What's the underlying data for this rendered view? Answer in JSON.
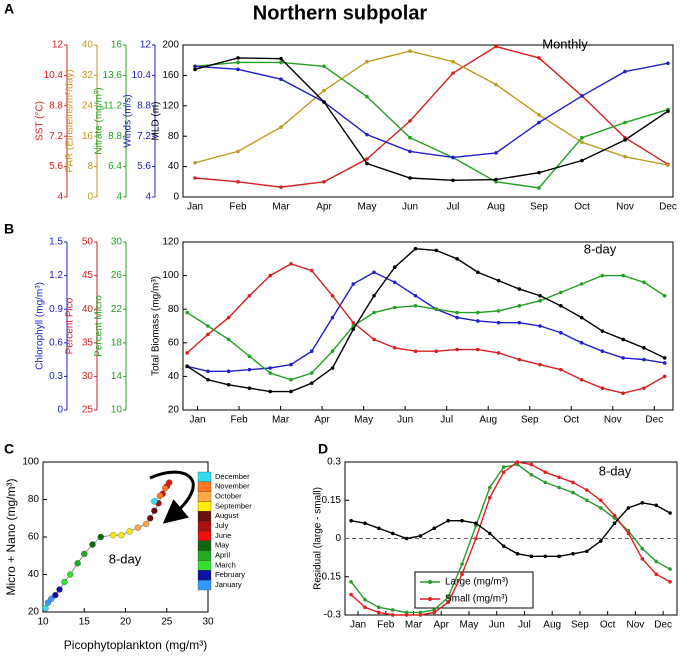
{
  "figure_title": "Northern subpolar",
  "chart_data": [
    {
      "type": "multiaxis_line",
      "panel": "A",
      "annotation": "Monthly",
      "categories": [
        "Jan",
        "Feb",
        "Mar",
        "Apr",
        "May",
        "Jun",
        "Jul",
        "Aug",
        "Sep",
        "Oct",
        "Nov",
        "Dec"
      ],
      "series": [
        {
          "name": "SST (°C)",
          "color": "#d62020",
          "ylim": [
            4,
            12
          ],
          "yticks": [
            4,
            5.6,
            7.2,
            8.8,
            10.4,
            12
          ],
          "values": [
            5.0,
            4.8,
            4.52,
            4.8,
            6.0,
            8.0,
            10.52,
            11.92,
            11.32,
            9.32,
            7.12,
            5.72
          ]
        },
        {
          "name": "PAR (Einsteins/m²/day)",
          "color": "#c09a20",
          "ylim": [
            0,
            40
          ],
          "yticks": [
            0,
            8,
            16,
            24,
            32,
            40
          ],
          "values": [
            9,
            12,
            18.4,
            28,
            35.6,
            38.4,
            35.6,
            29.6,
            21.6,
            14.4,
            10.6,
            8.4
          ]
        },
        {
          "name": "Nitrate (mg/m³)",
          "color": "#22a022",
          "ylim": [
            4,
            16
          ],
          "yticks": [
            4,
            6.4,
            8.8,
            11.2,
            13.6,
            16
          ],
          "values": [
            14.32,
            14.62,
            14.62,
            14.32,
            11.92,
            8.68,
            7.12,
            5.2,
            4.72,
            8.68,
            9.88,
            10.9
          ]
        },
        {
          "name": "Winds (m/s)",
          "color": "#2020c8",
          "ylim": [
            4,
            12
          ],
          "yticks": [
            4,
            5.6,
            7.2,
            8.8,
            10.4,
            12
          ],
          "values": [
            10.88,
            10.72,
            10.2,
            9.0,
            7.28,
            6.4,
            6.08,
            6.32,
            7.92,
            9.32,
            10.6,
            11.04
          ]
        },
        {
          "name": "MLD (m)",
          "color": "#000000",
          "ylim": [
            0,
            200
          ],
          "yticks": [
            0,
            40,
            80,
            120,
            160,
            200
          ],
          "values": [
            168,
            183,
            182,
            125,
            44,
            25,
            22,
            23,
            32,
            48,
            75,
            113
          ]
        }
      ]
    },
    {
      "type": "multiaxis_line",
      "panel": "B",
      "annotation": "8-day",
      "x": [
        -0.25,
        0.25,
        0.75,
        1.25,
        1.75,
        2.25,
        2.75,
        3.25,
        3.75,
        4.25,
        4.75,
        5.25,
        5.75,
        6.25,
        6.75,
        7.25,
        7.75,
        8.25,
        8.75,
        9.25,
        9.75,
        10.25,
        10.75,
        11.25
      ],
      "xlim": [
        -0.35,
        11.45
      ],
      "xticks": [
        {
          "value": 0,
          "label": "Jan"
        },
        {
          "value": 1,
          "label": "Feb"
        },
        {
          "value": 2,
          "label": "Mar"
        },
        {
          "value": 3,
          "label": "Apr"
        },
        {
          "value": 4,
          "label": "May"
        },
        {
          "value": 5,
          "label": "Jun"
        },
        {
          "value": 6,
          "label": "Jul"
        },
        {
          "value": 7,
          "label": "Aug"
        },
        {
          "value": 8,
          "label": "Sep"
        },
        {
          "value": 9,
          "label": "Oct"
        },
        {
          "value": 10,
          "label": "Nov"
        },
        {
          "value": 11,
          "label": "Dec"
        }
      ],
      "series": [
        {
          "name": "Chlorophyll (mg/m³)",
          "color": "#2020c8",
          "ylim": [
            0,
            1.5
          ],
          "yticks": [
            0,
            0.3,
            0.6,
            0.9,
            1.2,
            1.5
          ],
          "values": [
            0.39,
            0.345,
            0.345,
            0.36,
            0.375,
            0.405,
            0.525,
            0.825,
            1.125,
            1.23,
            1.14,
            1.02,
            0.9,
            0.825,
            0.795,
            0.78,
            0.78,
            0.75,
            0.69,
            0.6,
            0.525,
            0.465,
            0.45,
            0.42
          ]
        },
        {
          "name": "Percent Pico",
          "color": "#d62020",
          "ylim": [
            25,
            50
          ],
          "yticks": [
            25,
            30,
            35,
            40,
            45,
            50
          ],
          "values": [
            33.5,
            36.25,
            38.75,
            42,
            45,
            46.75,
            45.75,
            42,
            38,
            35.5,
            34.25,
            33.75,
            33.75,
            34,
            34,
            33.5,
            32.5,
            31.75,
            31,
            29.5,
            28.25,
            27.5,
            28.25,
            30
          ]
        },
        {
          "name": "Percent Micro",
          "color": "#22a022",
          "ylim": [
            10,
            30
          ],
          "yticks": [
            10,
            14,
            18,
            22,
            26,
            30
          ],
          "values": [
            21.6,
            20,
            18.4,
            16.4,
            14.4,
            13.6,
            14.4,
            17,
            20,
            21.6,
            22.2,
            22.4,
            22,
            21.6,
            21.6,
            21.8,
            22.4,
            23,
            24,
            25,
            26,
            26,
            25.2,
            23.6
          ]
        },
        {
          "name": "Total Biomass (mg/m³)",
          "color": "#000000",
          "ylim": [
            20,
            120
          ],
          "yticks": [
            20,
            40,
            60,
            80,
            100,
            120
          ],
          "values": [
            46,
            38,
            35,
            33,
            31,
            31,
            36,
            45,
            68,
            88,
            105,
            116,
            115,
            110,
            102,
            97,
            92,
            88,
            82,
            75,
            67,
            62,
            57,
            51
          ]
        }
      ]
    },
    {
      "type": "scatter",
      "panel": "C",
      "annotation": "8-day",
      "xlabel": "Picophytoplankton (mg/m³)",
      "ylabel": "Micro + Nano (mg/m³)",
      "xlim": [
        10,
        30
      ],
      "xticks": [
        10,
        15,
        20,
        25,
        30
      ],
      "ylim": [
        20,
        100
      ],
      "yticks": [
        20,
        40,
        60,
        80,
        100
      ],
      "x": [
        10.3,
        10.6,
        11,
        11.5,
        12,
        12.6,
        13.3,
        14.2,
        15,
        16,
        17,
        18.5,
        19.5,
        20.5,
        21.5,
        22.5,
        23,
        23.5,
        24,
        24.5,
        25,
        25.3,
        24.8,
        24.2,
        23.5
      ],
      "values": [
        22,
        25,
        27,
        29,
        32,
        36,
        40,
        46,
        51,
        56,
        60,
        61,
        61,
        63,
        65,
        67,
        70,
        74,
        78,
        83,
        87,
        89,
        86,
        82,
        79
      ],
      "colors": [
        "#33ddee",
        "#3399ff",
        "#3399ff",
        "#1010a0",
        "#1010a0",
        "#33dd33",
        "#33dd33",
        "#22aa22",
        "#22aa22",
        "#116611",
        "#116611",
        "#ffee00",
        "#ffee00",
        "#ffee00",
        "#ffaa44",
        "#ffaa44",
        "#661111",
        "#661111",
        "#aa1111",
        "#cc1111",
        "#ee1111",
        "#ee1111",
        "#ff7722",
        "#ff7722",
        "#33ddee"
      ],
      "month_legend": [
        {
          "label": "December",
          "color": "#33ddee"
        },
        {
          "label": "November",
          "color": "#ff7722"
        },
        {
          "label": "October",
          "color": "#ffaa44"
        },
        {
          "label": "September",
          "color": "#ffee00"
        },
        {
          "label": "August",
          "color": "#661111"
        },
        {
          "label": "July",
          "color": "#aa1111"
        },
        {
          "label": "June",
          "color": "#ee1111"
        },
        {
          "label": "May",
          "color": "#116611"
        },
        {
          "label": "April",
          "color": "#22aa22"
        },
        {
          "label": "March",
          "color": "#33dd33"
        },
        {
          "label": "February",
          "color": "#1010a0"
        },
        {
          "label": "January",
          "color": "#3399ff"
        }
      ]
    },
    {
      "type": "line",
      "panel": "D",
      "annotation": "8-day",
      "ylabel": "Residual (large - small)",
      "x": [
        -0.25,
        0.25,
        0.75,
        1.25,
        1.75,
        2.25,
        2.75,
        3.25,
        3.75,
        4.25,
        4.75,
        5.25,
        5.75,
        6.25,
        6.75,
        7.25,
        7.75,
        8.25,
        8.75,
        9.25,
        9.75,
        10.25,
        10.75,
        11.25
      ],
      "xlim": [
        -0.47,
        11.5
      ],
      "xticks": [
        {
          "value": 0,
          "label": "Jan"
        },
        {
          "value": 1,
          "label": "Feb"
        },
        {
          "value": 2,
          "label": "Mar"
        },
        {
          "value": 3,
          "label": "Apr"
        },
        {
          "value": 4,
          "label": "May"
        },
        {
          "value": 5,
          "label": "Jun"
        },
        {
          "value": 6,
          "label": "Jul"
        },
        {
          "value": 7,
          "label": "Aug"
        },
        {
          "value": 8,
          "label": "Sep"
        },
        {
          "value": 9,
          "label": "Oct"
        },
        {
          "value": 10,
          "label": "Nov"
        },
        {
          "value": 11,
          "label": "Dec"
        }
      ],
      "ylim": [
        -0.3,
        0.3
      ],
      "yticks": [
        -0.3,
        -0.15,
        0,
        0.15,
        0.3
      ],
      "series": [
        {
          "name": "Large (mg/m³)",
          "color": "#2a9a2a",
          "values": [
            -0.17,
            -0.24,
            -0.27,
            -0.28,
            -0.29,
            -0.29,
            -0.28,
            -0.23,
            -0.1,
            0.05,
            0.2,
            0.28,
            0.29,
            0.25,
            0.22,
            0.2,
            0.18,
            0.15,
            0.12,
            0.08,
            0.03,
            -0.04,
            -0.09,
            -0.12
          ]
        },
        {
          "name": "Small (mg/m³)",
          "color": "#e02020",
          "values": [
            -0.22,
            -0.27,
            -0.29,
            -0.3,
            -0.3,
            -0.3,
            -0.29,
            -0.25,
            -0.14,
            0.0,
            0.16,
            0.26,
            0.3,
            0.29,
            0.26,
            0.24,
            0.22,
            0.19,
            0.15,
            0.09,
            0.02,
            -0.08,
            -0.14,
            -0.17
          ]
        },
        {
          "color": "#000000",
          "values": [
            0.07,
            0.06,
            0.04,
            0.02,
            0.0,
            0.01,
            0.04,
            0.07,
            0.07,
            0.06,
            0.02,
            -0.03,
            -0.06,
            -0.07,
            -0.07,
            -0.07,
            -0.06,
            -0.05,
            -0.01,
            0.06,
            0.12,
            0.14,
            0.13,
            0.1
          ]
        }
      ]
    }
  ]
}
